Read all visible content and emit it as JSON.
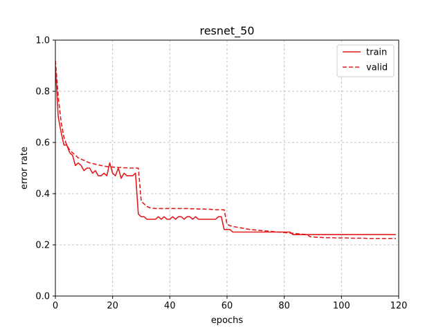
{
  "chart_data": {
    "type": "line",
    "title": "resnet_50",
    "xlabel": "epochs",
    "ylabel": "error rate",
    "xlim": [
      0,
      120
    ],
    "ylim": [
      0.0,
      1.0
    ],
    "xticks": [
      0,
      20,
      40,
      60,
      80,
      100,
      120
    ],
    "yticks": [
      0.0,
      0.2,
      0.4,
      0.6,
      0.8,
      1.0
    ],
    "xtick_labels": [
      "0",
      "20",
      "40",
      "60",
      "80",
      "100",
      "120"
    ],
    "ytick_labels": [
      "0.0",
      "0.2",
      "0.4",
      "0.6",
      "0.8",
      "1.0"
    ],
    "grid": true,
    "legend_position": "top-right",
    "series": [
      {
        "name": "train",
        "style": "solid",
        "color": "#e31a1c",
        "x": [
          0,
          1,
          2,
          3,
          4,
          5,
          6,
          7,
          8,
          9,
          10,
          11,
          12,
          13,
          14,
          15,
          16,
          17,
          18,
          19,
          20,
          21,
          22,
          23,
          24,
          25,
          26,
          27,
          28,
          29,
          30,
          31,
          32,
          33,
          34,
          35,
          36,
          37,
          38,
          39,
          40,
          41,
          42,
          43,
          44,
          45,
          46,
          47,
          48,
          49,
          50,
          51,
          52,
          53,
          54,
          55,
          56,
          57,
          58,
          59,
          60,
          61,
          62,
          63,
          64,
          65,
          66,
          67,
          68,
          69,
          70,
          71,
          72,
          73,
          74,
          75,
          76,
          77,
          78,
          79,
          80,
          81,
          82,
          83,
          84,
          85,
          86,
          87,
          88,
          89,
          90,
          91,
          92,
          93,
          94,
          95,
          96,
          97,
          98,
          99,
          100,
          101,
          102,
          103,
          104,
          105,
          106,
          107,
          108,
          109,
          110,
          111,
          112,
          113,
          114,
          115,
          116,
          117,
          118,
          119
        ],
        "values": [
          0.9,
          0.7,
          0.64,
          0.59,
          0.59,
          0.56,
          0.55,
          0.51,
          0.52,
          0.51,
          0.49,
          0.5,
          0.5,
          0.48,
          0.49,
          0.47,
          0.47,
          0.48,
          0.47,
          0.52,
          0.48,
          0.47,
          0.5,
          0.46,
          0.48,
          0.47,
          0.47,
          0.47,
          0.48,
          0.32,
          0.31,
          0.31,
          0.3,
          0.3,
          0.3,
          0.3,
          0.31,
          0.3,
          0.31,
          0.3,
          0.3,
          0.31,
          0.3,
          0.31,
          0.31,
          0.3,
          0.31,
          0.31,
          0.3,
          0.31,
          0.3,
          0.3,
          0.3,
          0.3,
          0.3,
          0.3,
          0.3,
          0.31,
          0.31,
          0.26,
          0.26,
          0.26,
          0.25,
          0.25,
          0.25,
          0.25,
          0.25,
          0.25,
          0.25,
          0.25,
          0.25,
          0.25,
          0.25,
          0.25,
          0.25,
          0.25,
          0.25,
          0.25,
          0.25,
          0.25,
          0.25,
          0.25,
          0.25,
          0.24,
          0.24,
          0.24,
          0.24,
          0.24,
          0.24,
          0.24,
          0.24,
          0.24,
          0.24,
          0.24,
          0.24,
          0.24,
          0.24,
          0.24,
          0.24,
          0.24,
          0.24,
          0.24,
          0.24,
          0.24,
          0.24,
          0.24,
          0.24,
          0.24,
          0.24,
          0.24,
          0.24,
          0.24,
          0.24,
          0.24,
          0.24,
          0.24,
          0.24,
          0.24,
          0.24,
          0.24
        ]
      },
      {
        "name": "valid",
        "style": "dashed",
        "color": "#e31a1c",
        "x": [
          0,
          1,
          2,
          3,
          4,
          5,
          6,
          7,
          8,
          9,
          10,
          11,
          12,
          13,
          14,
          15,
          16,
          17,
          18,
          19,
          20,
          21,
          22,
          23,
          24,
          25,
          26,
          27,
          28,
          29,
          30,
          31,
          32,
          33,
          34,
          35,
          36,
          37,
          38,
          39,
          40,
          41,
          42,
          43,
          44,
          45,
          46,
          47,
          48,
          49,
          50,
          51,
          52,
          53,
          54,
          55,
          56,
          57,
          58,
          59,
          60,
          61,
          62,
          63,
          64,
          65,
          66,
          67,
          68,
          69,
          70,
          71,
          72,
          73,
          74,
          75,
          76,
          77,
          78,
          79,
          80,
          81,
          82,
          83,
          84,
          85,
          86,
          87,
          88,
          89,
          90,
          91,
          92,
          93,
          94,
          95,
          96,
          97,
          98,
          99,
          100,
          101,
          102,
          103,
          104,
          105,
          106,
          107,
          108,
          109,
          110,
          111,
          112,
          113,
          114,
          115,
          116,
          117,
          118,
          119
        ],
        "values": [
          0.92,
          0.78,
          0.68,
          0.62,
          0.59,
          0.57,
          0.56,
          0.55,
          0.54,
          0.535,
          0.53,
          0.525,
          0.52,
          0.518,
          0.515,
          0.512,
          0.51,
          0.508,
          0.506,
          0.505,
          0.504,
          0.503,
          0.502,
          0.502,
          0.501,
          0.501,
          0.5,
          0.5,
          0.5,
          0.5,
          0.37,
          0.36,
          0.35,
          0.345,
          0.343,
          0.342,
          0.342,
          0.342,
          0.342,
          0.342,
          0.342,
          0.342,
          0.342,
          0.342,
          0.342,
          0.342,
          0.342,
          0.341,
          0.341,
          0.341,
          0.34,
          0.34,
          0.34,
          0.339,
          0.339,
          0.338,
          0.337,
          0.337,
          0.337,
          0.337,
          0.28,
          0.275,
          0.272,
          0.27,
          0.268,
          0.266,
          0.264,
          0.262,
          0.26,
          0.259,
          0.258,
          0.257,
          0.256,
          0.255,
          0.254,
          0.253,
          0.252,
          0.251,
          0.25,
          0.249,
          0.248,
          0.247,
          0.246,
          0.245,
          0.244,
          0.243,
          0.242,
          0.241,
          0.24,
          0.232,
          0.231,
          0.23,
          0.229,
          0.229,
          0.228,
          0.228,
          0.228,
          0.228,
          0.227,
          0.227,
          0.227,
          0.227,
          0.227,
          0.226,
          0.226,
          0.226,
          0.226,
          0.226,
          0.226,
          0.225,
          0.225,
          0.225,
          0.225,
          0.225,
          0.225,
          0.225,
          0.225,
          0.225,
          0.225,
          0.225
        ]
      }
    ]
  }
}
